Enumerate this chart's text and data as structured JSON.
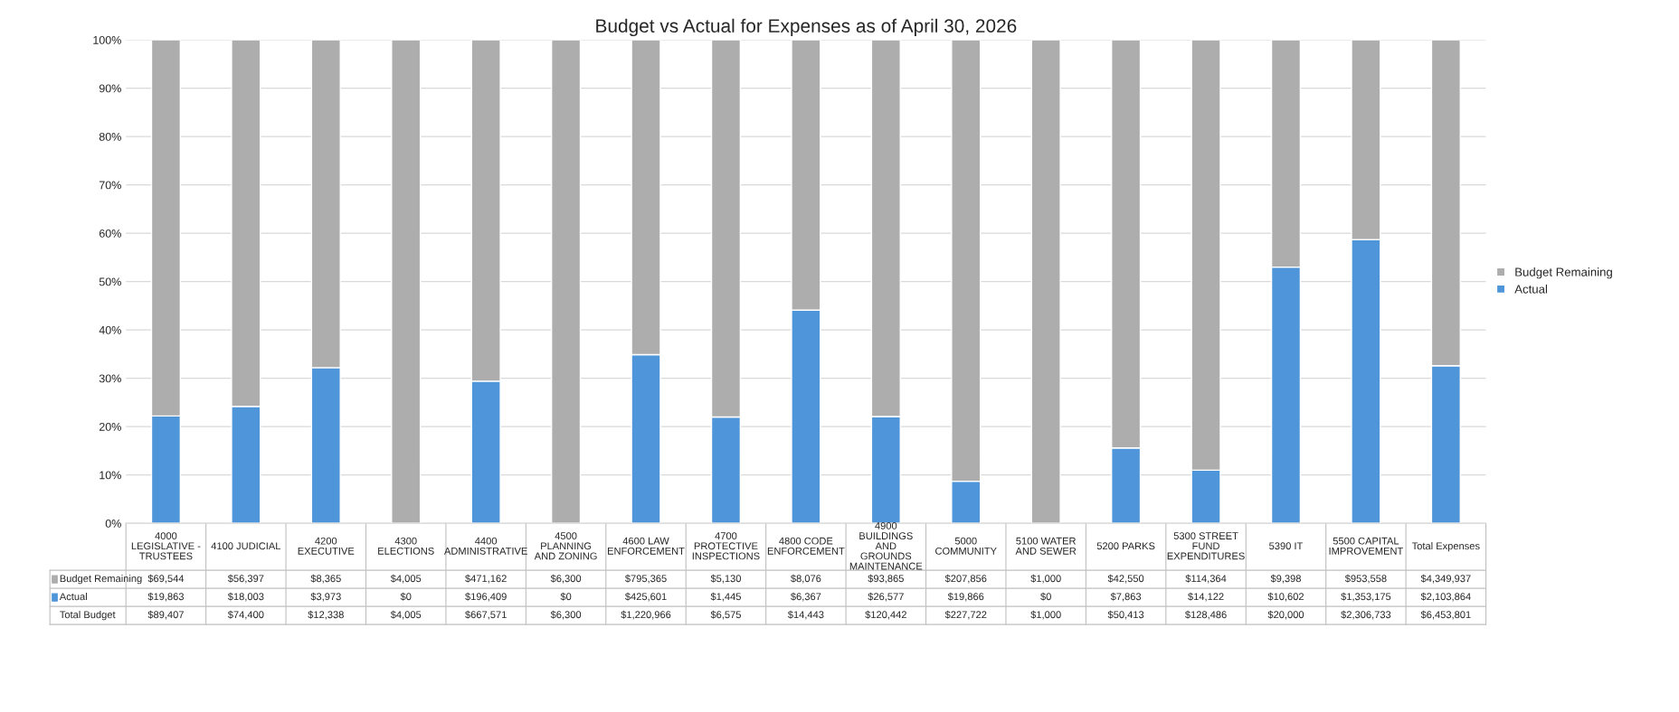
{
  "chart_data": {
    "type": "bar",
    "stacked": true,
    "title": "Budget vs Actual for Expenses as of April 30, 2026",
    "categories": [
      "4000 LEGISLATIVE - TRUSTEES",
      "4100 JUDICIAL",
      "4200 EXECUTIVE",
      "4300 ELECTIONS",
      "4400 ADMINISTRATIVE",
      "4500 PLANNING AND ZONING",
      "4600 LAW ENFORCEMENT",
      "4700 PROTECTIVE INSPECTIONS",
      "4800 CODE ENFORCEMENT",
      "4900 BUILDINGS AND GROUNDS MAINTENANCE",
      "5000 COMMUNITY",
      "5100 WATER AND SEWER",
      "5200 PARKS",
      "5300 STREET FUND EXPENDITURES",
      "5390 IT",
      "5500 CAPITAL IMPROVEMENT",
      "Total Expenses"
    ],
    "series": [
      {
        "name": "Actual",
        "color": "#4e95d9",
        "values": [
          22.2,
          24.2,
          32.2,
          0,
          29.4,
          0,
          34.9,
          22.0,
          44.1,
          22.1,
          8.7,
          0,
          15.6,
          11.0,
          53.0,
          58.7,
          32.6
        ]
      },
      {
        "name": "Budget Remaining",
        "color": "#adadad",
        "values": [
          77.8,
          75.8,
          67.8,
          100,
          70.6,
          100,
          65.1,
          78.0,
          55.9,
          77.9,
          91.3,
          100,
          84.4,
          89.0,
          47.0,
          41.3,
          67.4
        ]
      }
    ],
    "annotations": [
      "$69,544",
      "$56,397",
      "$8,365",
      "$4,005",
      "$471,162",
      "$6,300",
      "$795,365",
      "$5,130",
      "$8,076",
      "$93,865",
      "$207,856",
      "$1,000",
      "$42,550",
      "$114,364",
      "$9,398",
      "$953,558",
      "$4,349,937",
      "$19,863",
      "$18,003",
      "$3,973",
      "$0",
      "$196,409",
      "$0",
      "$425,601",
      "$1,445",
      "$6,367",
      "$26,577",
      "$19,866",
      "$0",
      "$7,863",
      "$14,122",
      "$10,602",
      "$1,353,175",
      "$2,103,864",
      "Total Budget",
      "$89,407",
      "$74,400",
      "$12,338",
      "$4,005",
      "$667,571",
      "$6,300",
      "$1,220,966",
      "$6,575",
      "$14,443",
      "$120,442",
      "$227,722",
      "$1,000",
      "$50,413",
      "$128,486",
      "$20,000",
      "$2,306,733",
      "$6,453,801"
    ],
    "ylim": [
      0,
      100
    ],
    "yticks": [
      {
        "value": 0,
        "label": "0%"
      },
      {
        "value": 10,
        "label": "10%"
      },
      {
        "value": 20,
        "label": "20%"
      },
      {
        "value": 30,
        "label": "30%"
      },
      {
        "value": 40,
        "label": "40%"
      },
      {
        "value": 50,
        "label": "50%"
      },
      {
        "value": 60,
        "label": "60%"
      },
      {
        "value": 70,
        "label": "70%"
      },
      {
        "value": 80,
        "label": "80%"
      },
      {
        "value": 90,
        "label": "90%"
      },
      {
        "value": 100,
        "label": "100%"
      }
    ],
    "grid": "y",
    "legend": "right"
  }
}
